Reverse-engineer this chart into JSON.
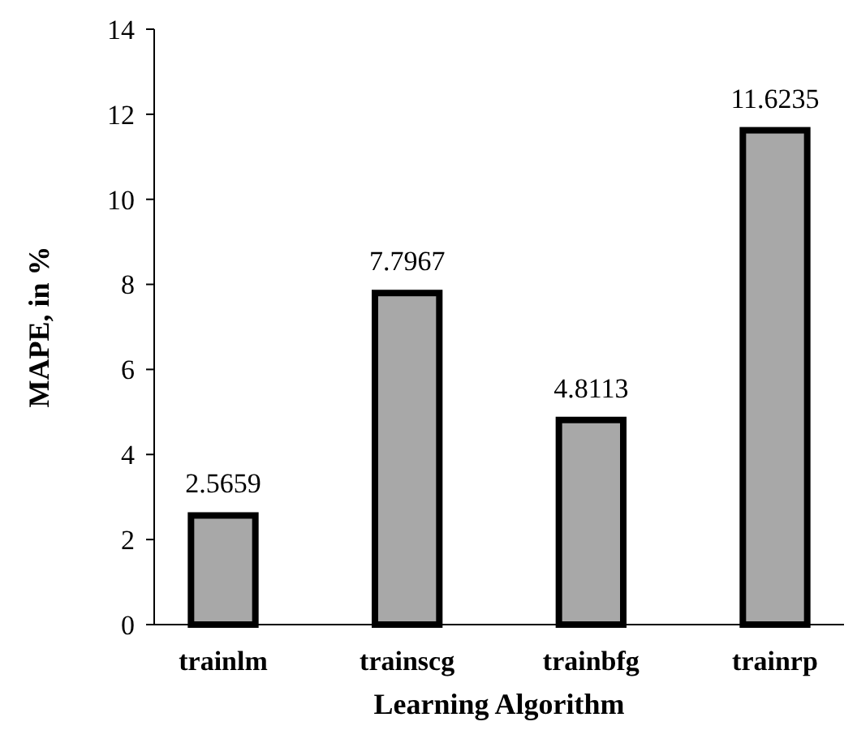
{
  "chart_data": {
    "type": "bar",
    "xlabel": "Learning Algorithm",
    "ylabel": "MAPE, in %",
    "categories": [
      "trainlm",
      "trainscg",
      "trainbfg",
      "trainrp"
    ],
    "values": [
      2.5659,
      7.7967,
      4.8113,
      11.6235
    ],
    "color": "#a8a8a8",
    "ylim": [
      0,
      14
    ],
    "yticks": [
      0,
      2,
      4,
      6,
      8,
      10,
      12,
      14
    ],
    "data_labels": true,
    "grid": false
  }
}
